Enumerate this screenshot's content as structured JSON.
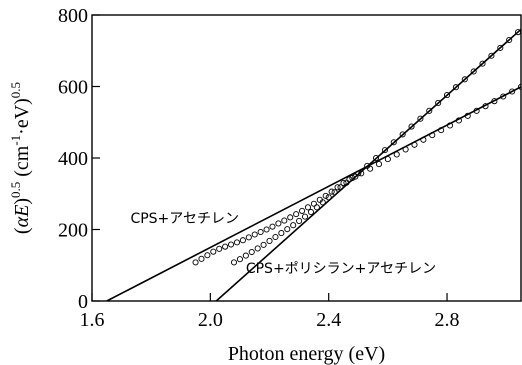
{
  "chart_data": {
    "type": "scatter",
    "xlabel": "Photon energy (eV)",
    "ylabel_parts": [
      "(",
      "αE",
      ")",
      "0.5",
      " (cm",
      "-1",
      "·eV)",
      "0.5"
    ],
    "xlim": [
      1.6,
      3.05
    ],
    "ylim": [
      0,
      800
    ],
    "xticks": [
      1.6,
      2.0,
      2.4,
      2.8
    ],
    "xtick_labels": [
      "1.6",
      "2.0",
      "2.4",
      "2.8"
    ],
    "yticks": [
      0,
      200,
      400,
      600,
      800
    ],
    "ytick_labels": [
      "0",
      "200",
      "400",
      "600",
      "800"
    ],
    "grid": false,
    "series": [
      {
        "name": "CPS+アセチレン",
        "x": [
          1.95,
          1.97,
          1.99,
          2.01,
          2.03,
          2.05,
          2.07,
          2.09,
          2.11,
          2.13,
          2.15,
          2.17,
          2.19,
          2.21,
          2.23,
          2.25,
          2.27,
          2.29,
          2.31,
          2.33,
          2.35,
          2.37,
          2.39,
          2.41,
          2.43,
          2.45,
          2.47,
          2.49,
          2.51,
          2.54,
          2.57,
          2.6,
          2.63,
          2.66,
          2.69,
          2.72,
          2.75,
          2.78,
          2.81,
          2.84,
          2.87,
          2.9,
          2.93,
          2.96,
          2.99,
          3.02,
          3.05
        ],
        "y": [
          108,
          118,
          128,
          138,
          146,
          152,
          158,
          164,
          170,
          178,
          186,
          193,
          200,
          208,
          217,
          225,
          234,
          243,
          252,
          262,
          272,
          283,
          294,
          306,
          318,
          330,
          340,
          348,
          357,
          370,
          383,
          397,
          410,
          424,
          437,
          451,
          464,
          478,
          491,
          505,
          518,
          532,
          545,
          559,
          572,
          586,
          599
        ],
        "fit": {
          "x": [
            1.65,
            3.05
          ],
          "y": [
            0,
            599
          ]
        }
      },
      {
        "name": "CPS+ポリシラン+アセチレン",
        "x": [
          2.08,
          2.1,
          2.12,
          2.14,
          2.16,
          2.18,
          2.2,
          2.22,
          2.24,
          2.26,
          2.28,
          2.3,
          2.32,
          2.34,
          2.36,
          2.38,
          2.4,
          2.42,
          2.44,
          2.46,
          2.48,
          2.5,
          2.53,
          2.56,
          2.59,
          2.62,
          2.65,
          2.68,
          2.71,
          2.74,
          2.77,
          2.8,
          2.83,
          2.86,
          2.89,
          2.92,
          2.95,
          2.98,
          3.01,
          3.04
        ],
        "y": [
          108,
          117,
          127,
          137,
          147,
          157,
          168,
          179,
          190,
          201,
          212,
          224,
          236,
          249,
          262,
          276,
          290,
          304,
          318,
          331,
          344,
          357,
          378,
          400,
          422,
          444,
          466,
          488,
          510,
          532,
          554,
          576,
          598,
          620,
          642,
          664,
          686,
          708,
          730,
          752
        ],
        "fit": {
          "x": [
            2.02,
            3.05
          ],
          "y": [
            0,
            760
          ]
        }
      }
    ],
    "annotations": [
      {
        "text": "CPS+アセチレン",
        "x": 1.73,
        "y": 218
      },
      {
        "text": "CPS+ポリシラン+アセチレン",
        "x": 2.12,
        "y": 78
      }
    ]
  }
}
